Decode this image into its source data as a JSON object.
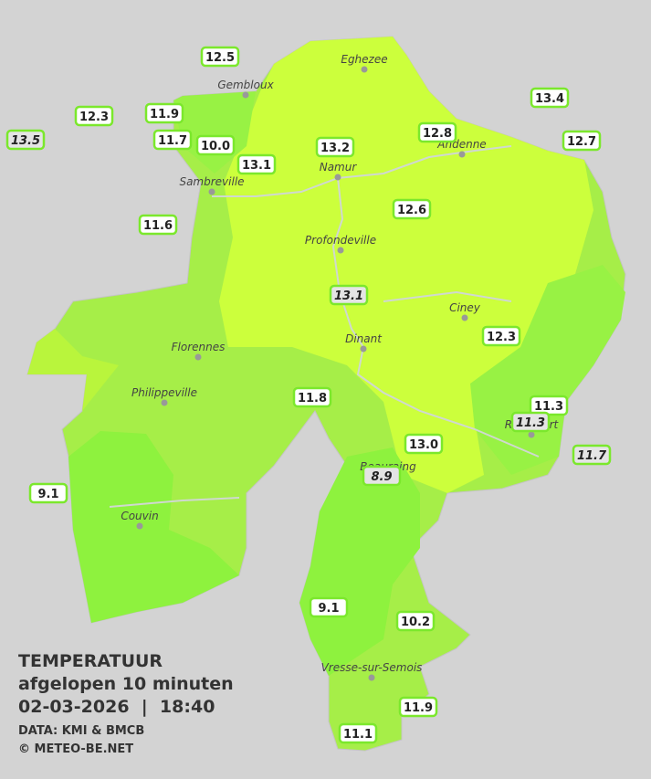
{
  "legend": {
    "title": "TEMPERATUUR",
    "subtitle": "afgelopen 10 minuten",
    "timestamp": "02-03-2026  |  18:40",
    "source": "DATA: KMI & BMCB",
    "copyright": "© METEO-BE.NET"
  },
  "cities": [
    "Eghezee",
    "Gembloux",
    "Andenne",
    "Namur",
    "Sambreville",
    "Profondeville",
    "Ciney",
    "Florennes",
    "Dinant",
    "Philippeville",
    "Rochefort",
    "Beauraing",
    "Couvin",
    "Vresse-sur-Semois"
  ],
  "stations": [
    "12.5",
    "12.3",
    "11.9",
    "13.5",
    "11.7",
    "10.0",
    "13.1",
    "13.2",
    "12.8",
    "13.4",
    "12.7",
    "11.6",
    "12.6",
    "13.1",
    "12.3",
    "11.8",
    "11.3",
    "11.3",
    "13.0",
    "11.7",
    "8.9",
    "9.1",
    "9.1",
    "10.2",
    "11.9",
    "11.1"
  ]
}
